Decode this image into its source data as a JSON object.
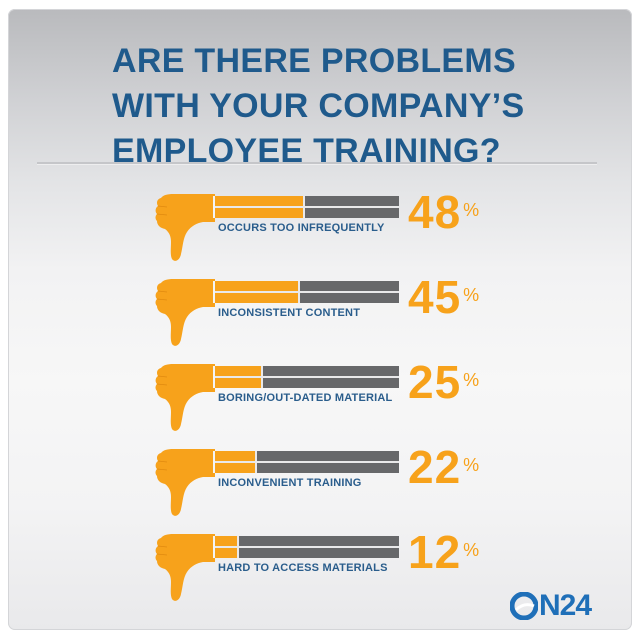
{
  "infographic": {
    "title_lines": [
      "ARE THERE PROBLEMS",
      "WITH YOUR COMPANY’S",
      "EMPLOYEE TRAINING?"
    ],
    "percent_symbol": "%",
    "brand": {
      "logo_text": "N24",
      "logo_full": "ON24",
      "color": "#1f6fb8"
    },
    "colors": {
      "title": "#1f5a8c",
      "accent": "#f7a21b",
      "bar_empty": "#67686a",
      "label": "#2a5d8c"
    },
    "rows": [
      {
        "label": "OCCURS TOO INFREQUENTLY",
        "value": "48"
      },
      {
        "label": "INCONSISTENT CONTENT",
        "value": "45"
      },
      {
        "label": "BORING/OUT-DATED MATERIAL",
        "value": "25"
      },
      {
        "label": "INCONVENIENT TRAINING",
        "value": "22"
      },
      {
        "label": "HARD TO ACCESS MATERIALS",
        "value": "12"
      }
    ]
  },
  "chart_data": {
    "type": "bar",
    "orientation": "horizontal",
    "title": "ARE THERE PROBLEMS WITH YOUR COMPANY’S EMPLOYEE TRAINING?",
    "categories": [
      "OCCURS TOO INFREQUENTLY",
      "INCONSISTENT CONTENT",
      "BORING/OUT-DATED MATERIAL",
      "INCONVENIENT TRAINING",
      "HARD TO ACCESS MATERIALS"
    ],
    "values": [
      48,
      45,
      25,
      22,
      12
    ],
    "unit": "%",
    "xlabel": "",
    "ylabel": "",
    "xlim": [
      0,
      100
    ],
    "grid": false,
    "legend": null,
    "data_labels": [
      "48%",
      "45%",
      "25%",
      "22%",
      "12%"
    ],
    "source_brand": "ON24"
  }
}
